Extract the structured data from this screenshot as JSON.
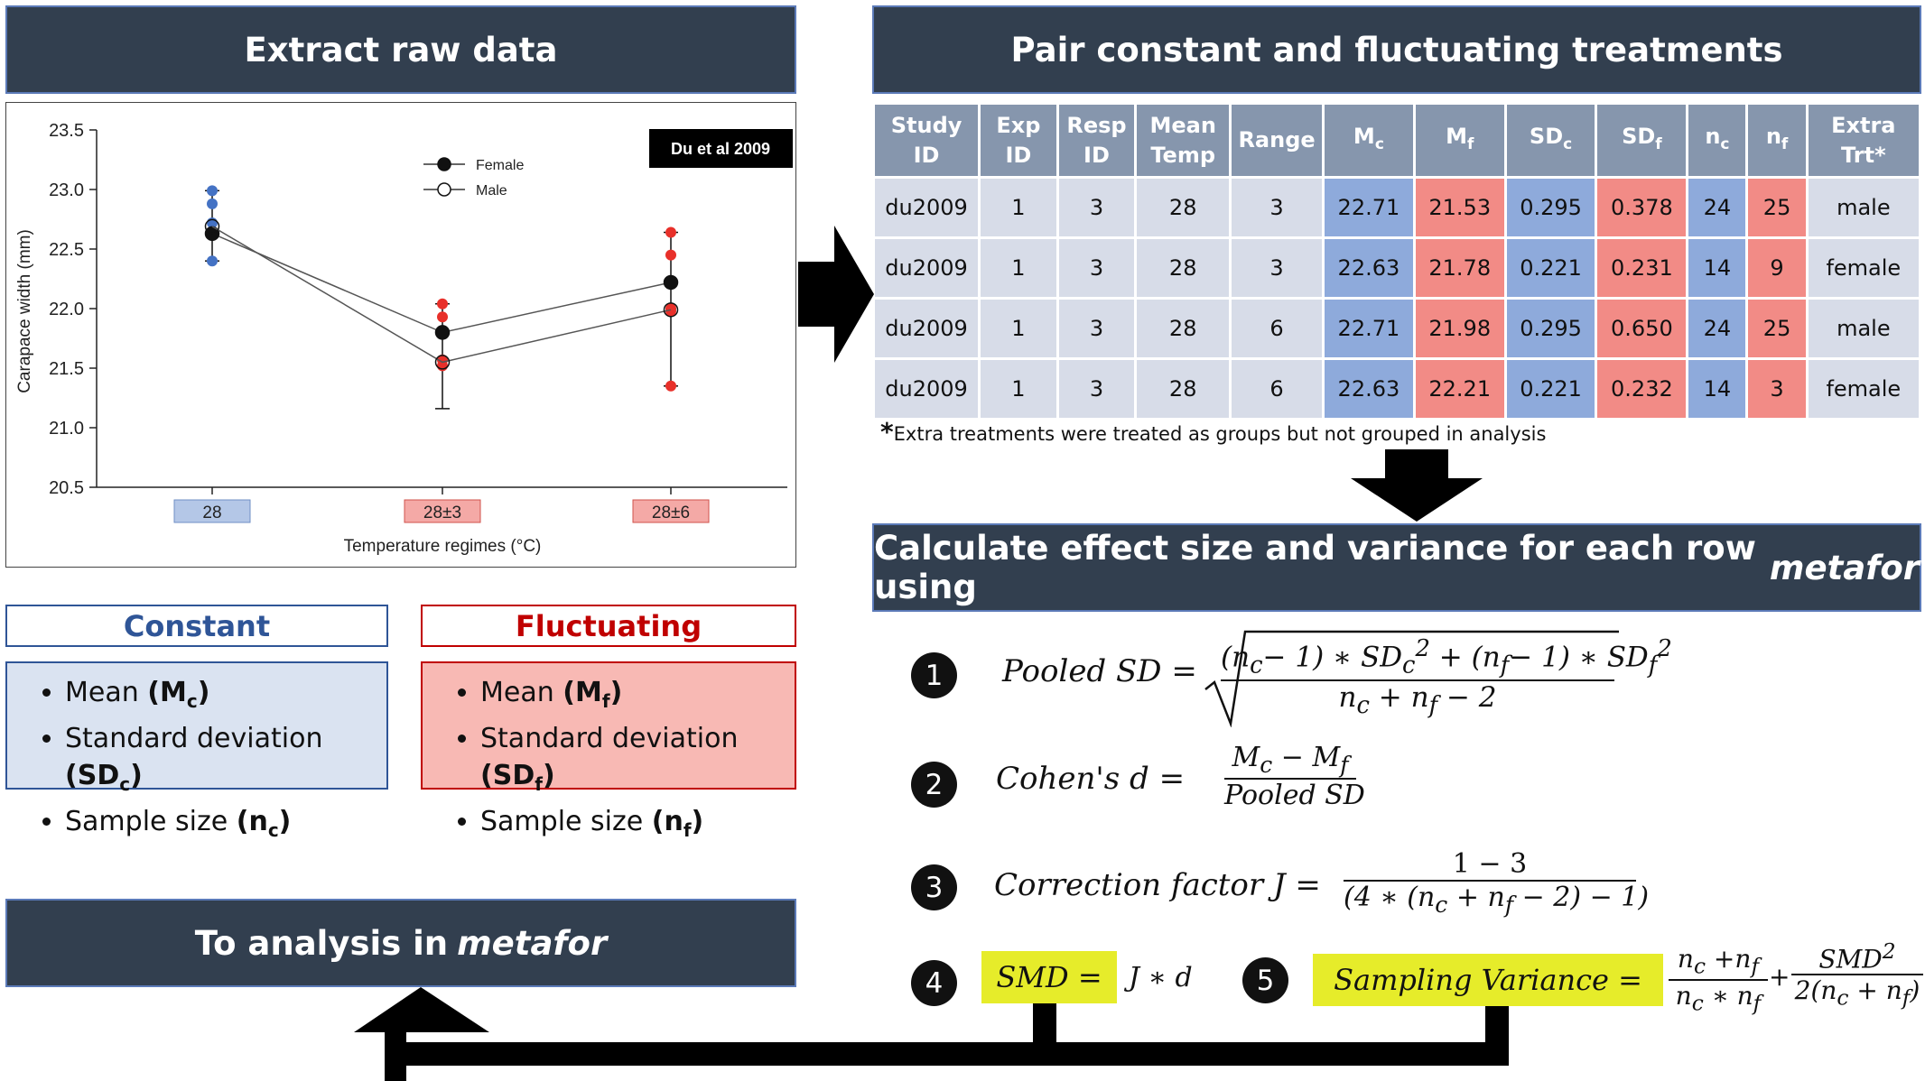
{
  "headers": {
    "extract": "Extract raw data",
    "pair": "Pair constant and fluctuating treatments",
    "calculate": "Calculate effect size and variance for each row using",
    "calculate_em": "metafor",
    "analysis": "To analysis in",
    "analysis_em": "metafor"
  },
  "chart_data": {
    "type": "scatter",
    "badge": "Du et al 2009",
    "xlabel": "Temperature regimes (°C)",
    "ylabel": "Carapace width (mm)",
    "ylim": [
      20.5,
      23.5
    ],
    "yticks": [
      "23.5",
      "23.0",
      "22.5",
      "22.0",
      "21.5",
      "21.0",
      "20.5"
    ],
    "categories": [
      "28",
      "28±3",
      "28±6"
    ],
    "category_colors": [
      "#b4c7e7",
      "#f4a9a6",
      "#f4a9a6"
    ],
    "series": [
      {
        "name": "Female",
        "values": [
          22.63,
          21.8,
          22.22
        ],
        "marker": "filled"
      },
      {
        "name": "Male",
        "values": [
          22.69,
          21.55,
          21.99
        ],
        "marker": "open"
      }
    ],
    "error_bars": [
      [
        22.4,
        22.99
      ],
      [
        21.16,
        22.04
      ],
      [
        21.35,
        22.64
      ]
    ],
    "raw_points": [
      [
        22.99,
        22.88,
        22.72,
        22.63,
        22.4
      ],
      [
        22.04,
        21.93,
        21.8,
        21.57,
        21.52
      ],
      [
        22.64,
        22.45,
        22.22,
        22.0,
        21.98,
        21.35
      ]
    ],
    "grid": false,
    "legend_position": "top-center"
  },
  "legend_boxes": {
    "constant": {
      "title": "Constant",
      "items": [
        [
          "Mean ",
          "(M",
          "c",
          ")"
        ],
        [
          "Standard deviation ",
          "(SD",
          "c",
          ")"
        ],
        [
          "Sample size ",
          "(n",
          "c",
          ")"
        ]
      ]
    },
    "fluctuating": {
      "title": "Fluctuating",
      "items": [
        [
          "Mean ",
          "(M",
          "f",
          ")"
        ],
        [
          "Standard deviation ",
          "(SD",
          "f",
          ")"
        ],
        [
          "Sample size ",
          "(n",
          "f",
          ")"
        ]
      ]
    }
  },
  "table": {
    "columns": [
      [
        "Study",
        "ID"
      ],
      [
        "Exp",
        "ID"
      ],
      [
        "Resp",
        "ID"
      ],
      [
        "Mean",
        "Temp"
      ],
      [
        "Range",
        ""
      ],
      [
        "M",
        "c"
      ],
      [
        "M",
        "f"
      ],
      [
        "SD",
        "c"
      ],
      [
        "SD",
        "f"
      ],
      [
        "n",
        "c"
      ],
      [
        "n",
        "f"
      ],
      [
        "Extra",
        "Trt*"
      ]
    ],
    "column_kinds": [
      "g",
      "g",
      "g",
      "g",
      "g",
      "b",
      "r",
      "b",
      "r",
      "b",
      "r",
      "g"
    ],
    "rows": [
      [
        "du2009",
        "1",
        "3",
        "28",
        "3",
        "22.71",
        "21.53",
        "0.295",
        "0.378",
        "24",
        "25",
        "male"
      ],
      [
        "du2009",
        "1",
        "3",
        "28",
        "3",
        "22.63",
        "21.78",
        "0.221",
        "0.231",
        "14",
        "9",
        "female"
      ],
      [
        "du2009",
        "1",
        "3",
        "28",
        "6",
        "22.71",
        "21.98",
        "0.295",
        "0.650",
        "24",
        "25",
        "male"
      ],
      [
        "du2009",
        "1",
        "3",
        "28",
        "6",
        "22.63",
        "22.21",
        "0.221",
        "0.232",
        "14",
        "3",
        "female"
      ]
    ],
    "footnote_star": "*",
    "footnote": "Extra treatments were treated as groups but not grouped in analysis"
  },
  "steps": {
    "numbers": [
      "1",
      "2",
      "3",
      "4",
      "5"
    ],
    "pooled_label": "Pooled SD =",
    "cohen_label": "Cohen's d =",
    "correction_label": "Correction factor J =",
    "smd_label": "SMD =",
    "smd_rhs": "J ∗ d",
    "var_label": "Sampling Variance ="
  }
}
